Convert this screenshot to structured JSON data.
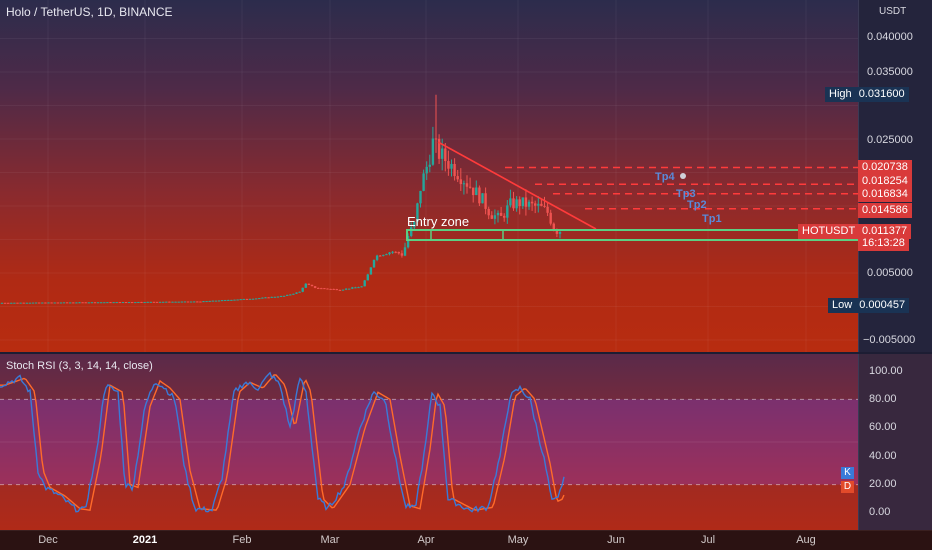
{
  "header": {
    "symbol_title": "Holo / TetherUS, 1D, BINANCE"
  },
  "price_axis": {
    "unit": "USDT",
    "ticks": [
      "0.040000",
      "0.035000",
      "0.025000",
      "0.005000",
      "−0.005000"
    ],
    "high_label": "High",
    "high_value": "0.031600",
    "low_label": "Low",
    "low_value": "0.000457",
    "levels": [
      "0.020738",
      "0.018254",
      "0.016834",
      "0.014586"
    ],
    "symbol_tag": "HOTUSDT",
    "current_price": "0.011377",
    "countdown": "16:13:28"
  },
  "annotations": {
    "entry_zone": "Entry zone",
    "tp1": "Tp1",
    "tp2": "Tp2",
    "tp3": "Tp3",
    "tp4": "Tp4"
  },
  "indicator": {
    "title": "Stoch RSI (3, 3, 14, 14, close)",
    "ticks": [
      "100.00",
      "80.00",
      "60.00",
      "40.00",
      "20.00",
      "0.00"
    ],
    "k_label": "K",
    "d_label": "D",
    "colors": {
      "k": "#3a7ad8",
      "d": "#ff6a2a"
    }
  },
  "time_axis": {
    "labels": [
      "Dec",
      "2021",
      "Feb",
      "Mar",
      "Apr",
      "May",
      "Jun",
      "Jul",
      "Aug"
    ]
  },
  "colors": {
    "up": "#26a69a",
    "down": "#ef5350",
    "trendline": "#ff3b3b",
    "zone": "#5ccf82"
  }
}
